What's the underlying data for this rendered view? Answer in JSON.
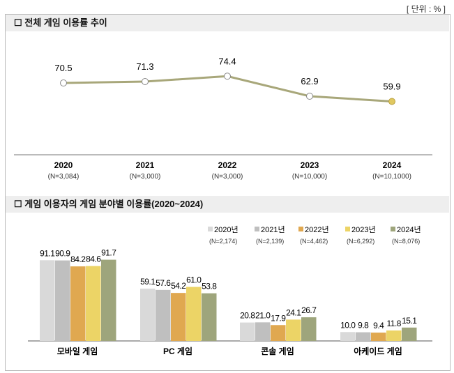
{
  "unit": "[ 단위 : % ]",
  "section1_title": "☐  전체 게임 이용률 추이",
  "section2_title": "☐  게임 이용자의 게임 분야별 이용률(2020~2024)",
  "chart_data": [
    {
      "type": "line",
      "categories": [
        "2020",
        "2021",
        "2022",
        "2023",
        "2024"
      ],
      "sublabels": [
        "(N=3,084)",
        "(N=3,000)",
        "(N=3,000)",
        "(N=10,000)",
        "(N=10,1000)"
      ],
      "values": [
        70.5,
        71.3,
        74.4,
        62.9,
        59.9
      ],
      "colors": {
        "line": "#a8a77a",
        "marker_fill": "#ffffff",
        "last_marker_fill": "#e0c860"
      }
    },
    {
      "type": "bar",
      "categories": [
        "모바일 게임",
        "PC 게임",
        "콘솔 게임",
        "아케이드 게임"
      ],
      "series": [
        {
          "name": "2020년",
          "n": "(N=2,174)",
          "color": "#d9d9d9",
          "values": [
            91.1,
            59.1,
            20.8,
            10.0
          ]
        },
        {
          "name": "2021년",
          "n": "(N=2,139)",
          "color": "#bfbfbf",
          "values": [
            90.9,
            57.6,
            21.0,
            9.8
          ]
        },
        {
          "name": "2022년",
          "n": "(N=4,462)",
          "color": "#e0a850",
          "values": [
            84.2,
            54.2,
            17.9,
            9.4
          ]
        },
        {
          "name": "2023년",
          "n": "(N=6,292)",
          "color": "#ecd466",
          "values": [
            84.6,
            61.0,
            24.1,
            11.8
          ]
        },
        {
          "name": "2024년",
          "n": "(N=8,076)",
          "color": "#9ea57c",
          "values": [
            91.7,
            53.8,
            26.7,
            15.1
          ]
        }
      ],
      "legend": "top-right"
    }
  ]
}
